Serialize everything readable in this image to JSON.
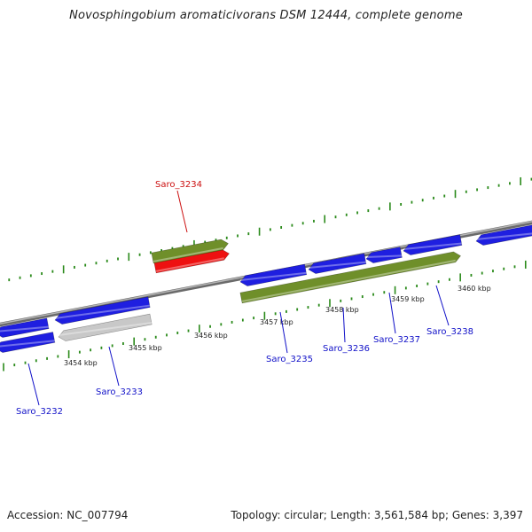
{
  "title": "Novosphingobium aromaticivorans DSM 12444, complete genome",
  "footer": {
    "accession": "Accession: NC_007794",
    "stats": "Topology: circular; Length: 3,561,584 bp; Genes: 3,397"
  },
  "colors": {
    "backbone": "#8c8c8c",
    "gene_blue": "#1f1fe0",
    "gene_green": "#6f8f2a",
    "gene_red": "#ee1111",
    "gene_gray": "#c8c8c8",
    "tick": "#2a8a1a",
    "label_blue": "#1010c8",
    "label_red": "#cc1010"
  },
  "scale": {
    "tick_labels": [
      "3454 kbp",
      "3455 kbp",
      "3456 kbp",
      "3457 kbp",
      "3458 kbp",
      "3459 kbp",
      "3460 kbp"
    ]
  },
  "genes": [
    {
      "name": "Saro_3232",
      "color": "label_blue"
    },
    {
      "name": "Saro_3233",
      "color": "label_blue"
    },
    {
      "name": "Saro_3234",
      "color": "label_red"
    },
    {
      "name": "Saro_3235",
      "color": "label_blue"
    },
    {
      "name": "Saro_3236",
      "color": "label_blue"
    },
    {
      "name": "Saro_3237",
      "color": "label_blue"
    },
    {
      "name": "Saro_3238",
      "color": "label_blue"
    }
  ]
}
